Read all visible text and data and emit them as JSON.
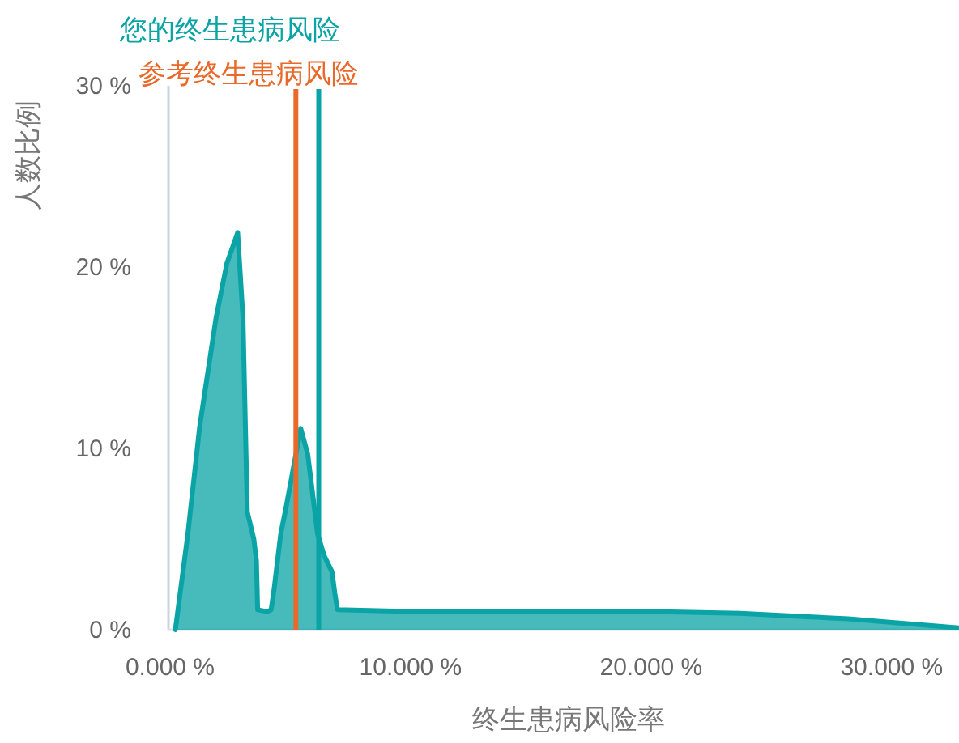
{
  "chart_data": {
    "type": "area",
    "xlabel": "终生患病风险率",
    "ylabel": "人数比例",
    "x": [
      0.22,
      0.74,
      1.23,
      1.91,
      2.36,
      2.81,
      3.03,
      3.21,
      3.48,
      3.59,
      3.64,
      4.04,
      4.2,
      4.33,
      4.6,
      4.83,
      5.43,
      5.72,
      6.13,
      6.4,
      6.73,
      6.85,
      6.96,
      10,
      14,
      16.95,
      20,
      23.7,
      28.2,
      32.8
    ],
    "series": [
      {
        "color": "#0aa3a6",
        "values": [
          0,
          5.3,
          11.2,
          17.2,
          20.2,
          21.9,
          17.2,
          6.5,
          5.0,
          3.8,
          1.1,
          1.0,
          1.1,
          2.3,
          5.3,
          6.8,
          11.1,
          9.7,
          5.3,
          4.1,
          3.2,
          2.0,
          1.1,
          1.0,
          1.0,
          1.0,
          1.0,
          0.9,
          0.6,
          0.1
        ]
      }
    ],
    "xlim": [
      0,
      32.8
    ],
    "ylim": [
      0,
      30
    ],
    "xticks": [
      {
        "value": 0,
        "label": "0.000 %"
      },
      {
        "value": 10,
        "label": "10.000 %"
      },
      {
        "value": 20,
        "label": "20.000 %"
      },
      {
        "value": 30,
        "label": "30.000 %"
      }
    ],
    "yticks": [
      {
        "value": 0,
        "label": "0 %"
      },
      {
        "value": 10,
        "label": "10 %"
      },
      {
        "value": 20,
        "label": "20 %"
      },
      {
        "value": 30,
        "label": "30 %"
      }
    ],
    "ref_lines": [
      {
        "axis": "x",
        "value": 6.18,
        "label": "您的终生患病风险",
        "color": "#0aa3a6"
      },
      {
        "axis": "x",
        "value": 5.23,
        "label": "参考终生患病风险",
        "color": "#e8692a"
      }
    ],
    "grid": false,
    "marker": "none"
  }
}
